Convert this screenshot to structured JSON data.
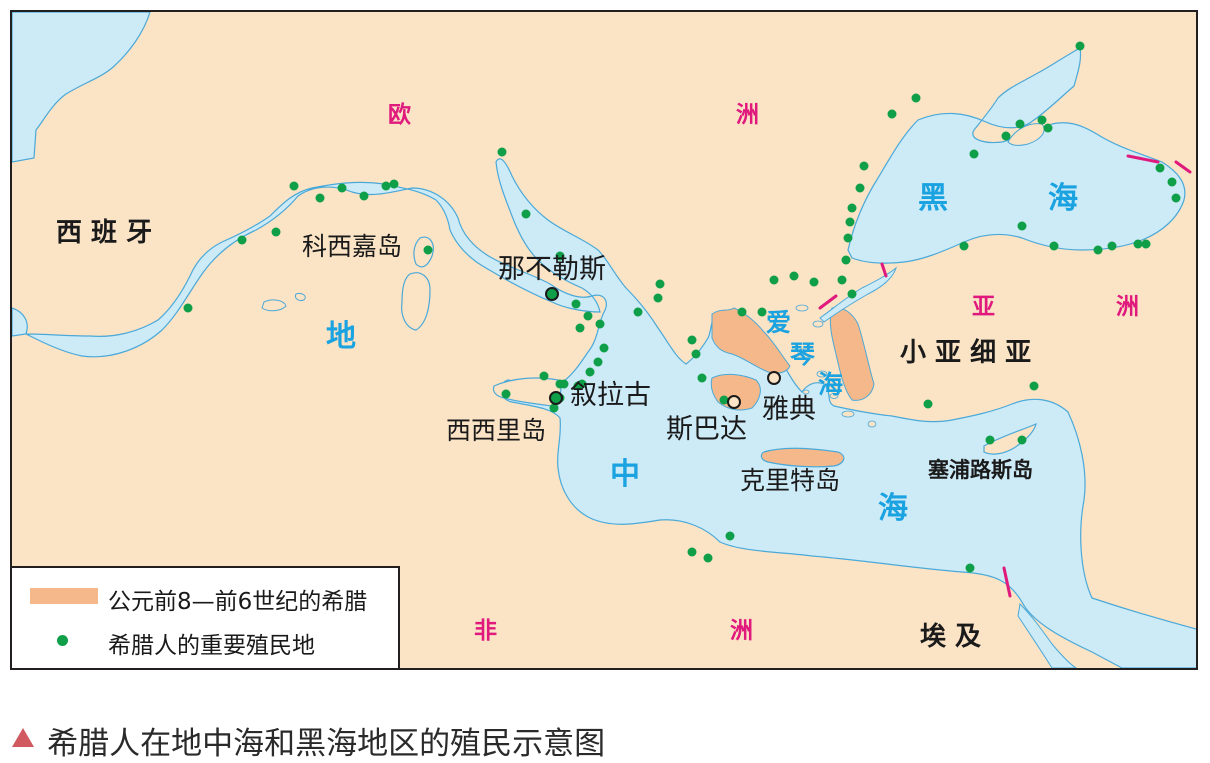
{
  "colors": {
    "land": "#fbe3c6",
    "sea": "#cdeaf7",
    "coast": "#4aa9d8",
    "greek_homeland": "#f5b88a",
    "colony_dot": "#0e9f48",
    "boundary": "#e0197d",
    "region_label": "#e0197d",
    "sea_label": "#1aa3e0"
  },
  "continents": {
    "europe_left": "欧",
    "europe_right": "洲",
    "asia_left": "亚",
    "asia_right": "洲",
    "africa_left": "非",
    "africa_right": "洲"
  },
  "seas": {
    "black_sea_left": "黑",
    "black_sea_right": "海",
    "mediterranean_1": "地",
    "mediterranean_2": "中",
    "mediterranean_3": "海",
    "aegean_1": "爱",
    "aegean_2": "琴",
    "aegean_3": "海"
  },
  "places": {
    "spain": "西  班  牙",
    "corsica": "科西嘉岛",
    "naples": "那不勒斯",
    "syracuse": "叙拉古",
    "sicily": "西西里岛",
    "sparta": "斯巴达",
    "athens": "雅典",
    "crete": "克里特岛",
    "cyprus": "塞浦路斯岛",
    "asia_minor": "小  亚  细  亚",
    "egypt": "埃    及"
  },
  "legend": {
    "homeland": "公元前8—前6世纪的希腊",
    "colonies": "希腊人的重要殖民地"
  },
  "caption": "希腊人在地中海和黑海地区的殖民示意图"
}
